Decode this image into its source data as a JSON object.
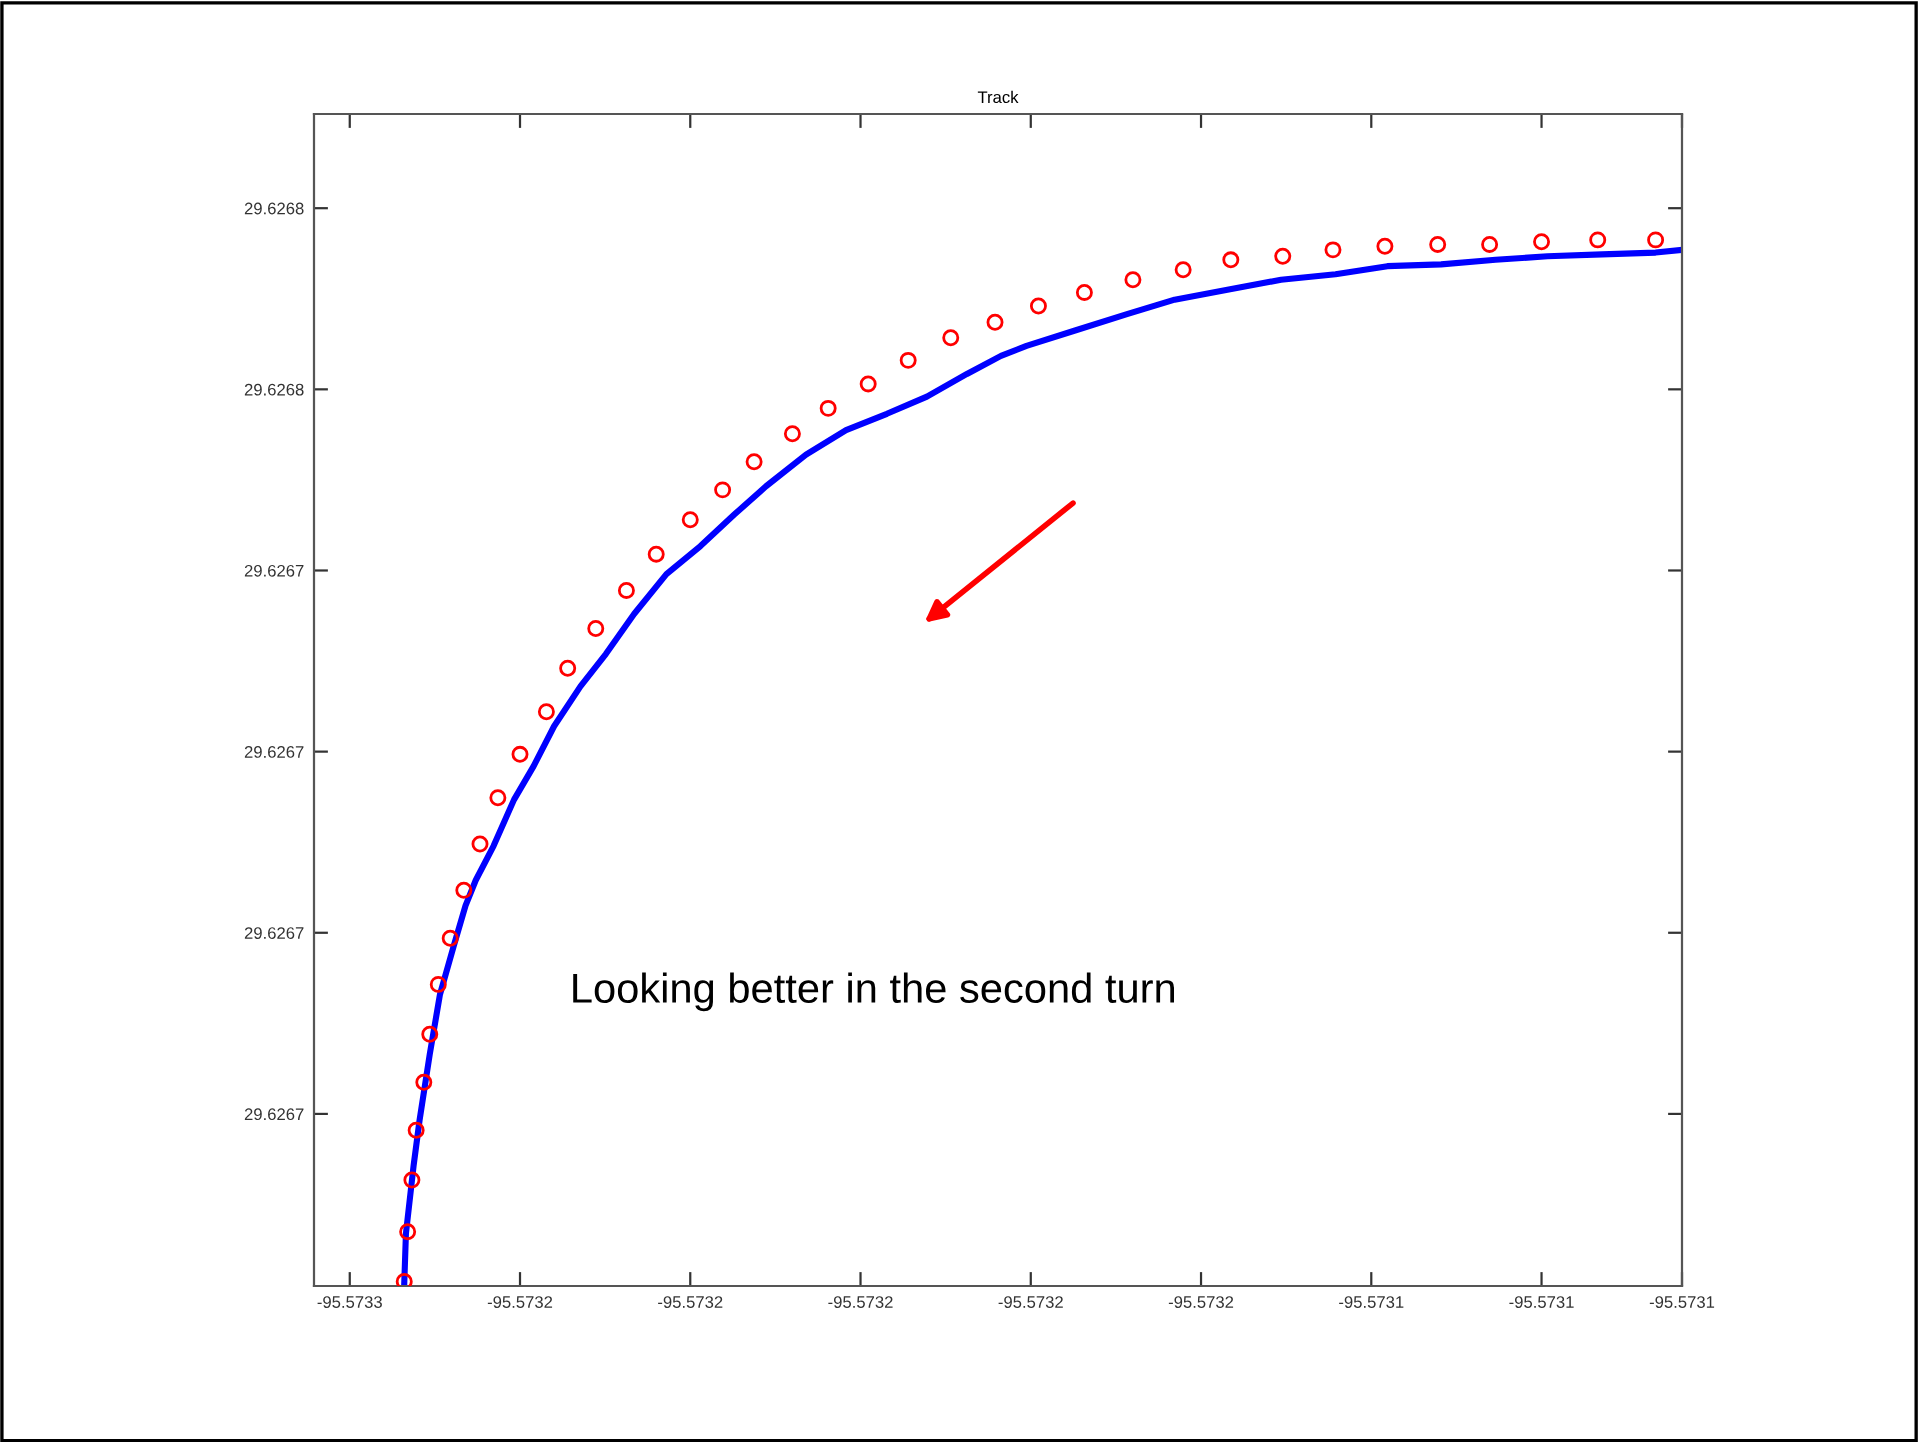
{
  "chart_data": {
    "type": "scatter",
    "title": "Track",
    "xlim": [
      -95.5732642,
      -95.5731035
    ],
    "ylim": [
      29.626661,
      29.6267904
    ],
    "xticks": [
      {
        "value": -95.57326,
        "label": "-95.5733"
      },
      {
        "value": -95.57324,
        "label": "-95.5732"
      },
      {
        "value": -95.57322,
        "label": "-95.5732"
      },
      {
        "value": -95.5732,
        "label": "-95.5732"
      },
      {
        "value": -95.57318,
        "label": "-95.5732"
      },
      {
        "value": -95.57316,
        "label": "-95.5732"
      },
      {
        "value": -95.57314,
        "label": "-95.5731"
      },
      {
        "value": -95.57312,
        "label": "-95.5731"
      },
      {
        "value": -95.5731035,
        "label": "-95.5731"
      }
    ],
    "yticks": [
      {
        "value": 29.62668,
        "label": "29.6267"
      },
      {
        "value": 29.6267,
        "label": "29.6267"
      },
      {
        "value": 29.62672,
        "label": "29.6267"
      },
      {
        "value": 29.62674,
        "label": "29.6267"
      },
      {
        "value": 29.62676,
        "label": "29.6268"
      },
      {
        "value": 29.62678,
        "label": "29.6268"
      }
    ],
    "grid": false,
    "annotations": [
      "Looking better in the second turn"
    ],
    "series": [
      {
        "type": "line",
        "color": "#0000ff",
        "marker": "none",
        "line_style": "solid",
        "x": [
          -95.5732536,
          -95.5732534,
          -95.5732525,
          -95.5732518,
          -95.5732506,
          -95.5732494,
          -95.5732478,
          -95.5732464,
          -95.5732452,
          -95.5732431,
          -95.5732407,
          -95.5732384,
          -95.573236,
          -95.5732329,
          -95.5732299,
          -95.5732266,
          -95.5732228,
          -95.5732188,
          -95.5732148,
          -95.5732111,
          -95.5732064,
          -95.5732017,
          -95.5731969,
          -95.5731922,
          -95.5731875,
          -95.5731835,
          -95.5731805,
          -95.5731748,
          -95.5731687,
          -95.5731631,
          -95.5731569,
          -95.5731506,
          -95.5731442,
          -95.5731381,
          -95.5731318,
          -95.5731254,
          -95.5731193,
          -95.5731129,
          -95.5731066,
          -95.5731035
        ],
        "values": [
          29.6266612,
          29.6266668,
          29.6266743,
          29.6266793,
          29.6266866,
          29.6266932,
          29.6266985,
          29.626703,
          29.6267058,
          29.6267096,
          29.6267147,
          29.6267184,
          29.6267228,
          29.6267272,
          29.6267308,
          29.6267352,
          29.6267396,
          29.6267427,
          29.6267462,
          29.6267493,
          29.6267528,
          29.6267555,
          29.6267573,
          29.6267592,
          29.6267617,
          29.6267637,
          29.6267648,
          29.6267665,
          29.6267683,
          29.6267699,
          29.626771,
          29.6267721,
          29.6267727,
          29.6267736,
          29.6267738,
          29.6267743,
          29.6267747,
          29.6267749,
          29.6267751,
          29.6267754
        ]
      },
      {
        "color": "#ff0000",
        "marker": "circle",
        "x": [
          -95.5732536,
          -95.5732532,
          -95.5732527,
          -95.5732522,
          -95.5732513,
          -95.5732506,
          -95.5732496,
          -95.5732482,
          -95.5732466,
          -95.5732447,
          -95.5732426,
          -95.57324,
          -95.5732369,
          -95.5732344,
          -95.5732311,
          -95.5732275,
          -95.573224,
          -95.57322,
          -95.5732162,
          -95.5732125,
          -95.573208,
          -95.5732038,
          -95.5731991,
          -95.5731944,
          -95.5731894,
          -95.5731842,
          -95.5731791,
          -95.5731737,
          -95.573168,
          -95.5731621,
          -95.5731565,
          -95.5731504,
          -95.5731445,
          -95.5731384,
          -95.5731322,
          -95.5731261,
          -95.57312,
          -95.5731134,
          -95.5731066
        ],
        "values": [
          29.6266615,
          29.626667,
          29.6266727,
          29.6266782,
          29.6266835,
          29.6266888,
          29.6266943,
          29.6266994,
          29.6267047,
          29.6267098,
          29.6267149,
          29.6267197,
          29.6267244,
          29.6267292,
          29.6267336,
          29.6267378,
          29.6267418,
          29.6267456,
          29.6267489,
          29.626752,
          29.6267551,
          29.6267579,
          29.6267606,
          29.6267632,
          29.6267657,
          29.6267674,
          29.6267692,
          29.6267707,
          29.6267721,
          29.6267732,
          29.6267743,
          29.6267747,
          29.6267754,
          29.6267758,
          29.626776,
          29.626776,
          29.6267763,
          29.6267765,
          29.6267765
        ]
      }
    ]
  }
}
